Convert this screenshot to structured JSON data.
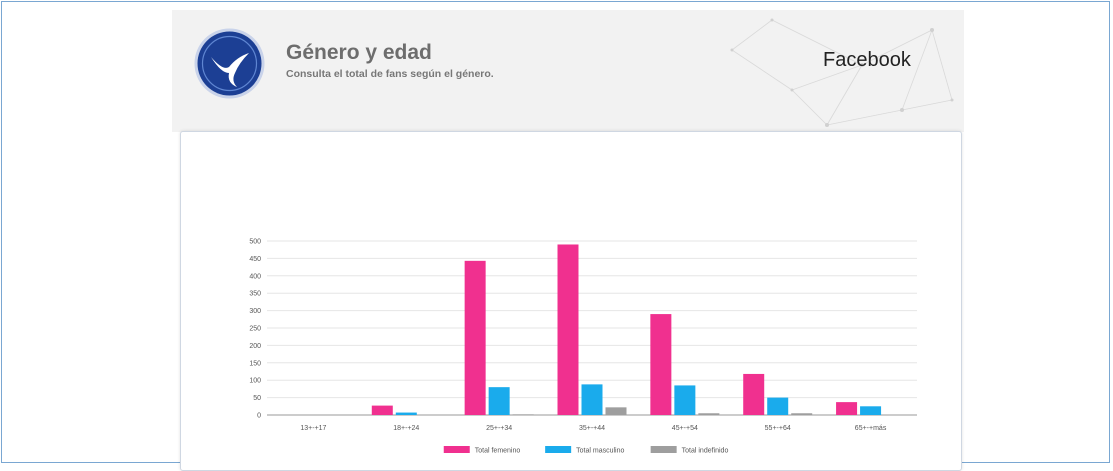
{
  "header": {
    "title": "Género y edad",
    "subtitle": "Consulta el total de fans según el género.",
    "platform": "Facebook"
  },
  "colors": {
    "female": "#f0308f",
    "male": "#1aabec",
    "undefined": "#9e9e9e",
    "header_bg": "#f2f2f2",
    "logo_blue": "#1c3f94"
  },
  "icons": {
    "logo": "swallow-logo-icon"
  },
  "chart_data": {
    "type": "bar",
    "title": "",
    "xlabel": "",
    "ylabel": "",
    "ylim": [
      0,
      500
    ],
    "yticks": [
      0,
      50,
      100,
      150,
      200,
      250,
      300,
      350,
      400,
      450,
      500
    ],
    "categories": [
      "13+-+17",
      "18+-+24",
      "25+-+34",
      "35+-+44",
      "45+-+54",
      "55+-+64",
      "65+-+más"
    ],
    "series": [
      {
        "name": "Total femenino",
        "color": "#f0308f",
        "values": [
          0,
          27,
          443,
          490,
          290,
          118,
          37
        ]
      },
      {
        "name": "Total masculino",
        "color": "#1aabec",
        "values": [
          0,
          7,
          80,
          88,
          85,
          50,
          25
        ]
      },
      {
        "name": "Total indefinido",
        "color": "#9e9e9e",
        "values": [
          0,
          0,
          2,
          22,
          5,
          5,
          0
        ]
      }
    ],
    "grid": true,
    "legend": "bottom"
  }
}
